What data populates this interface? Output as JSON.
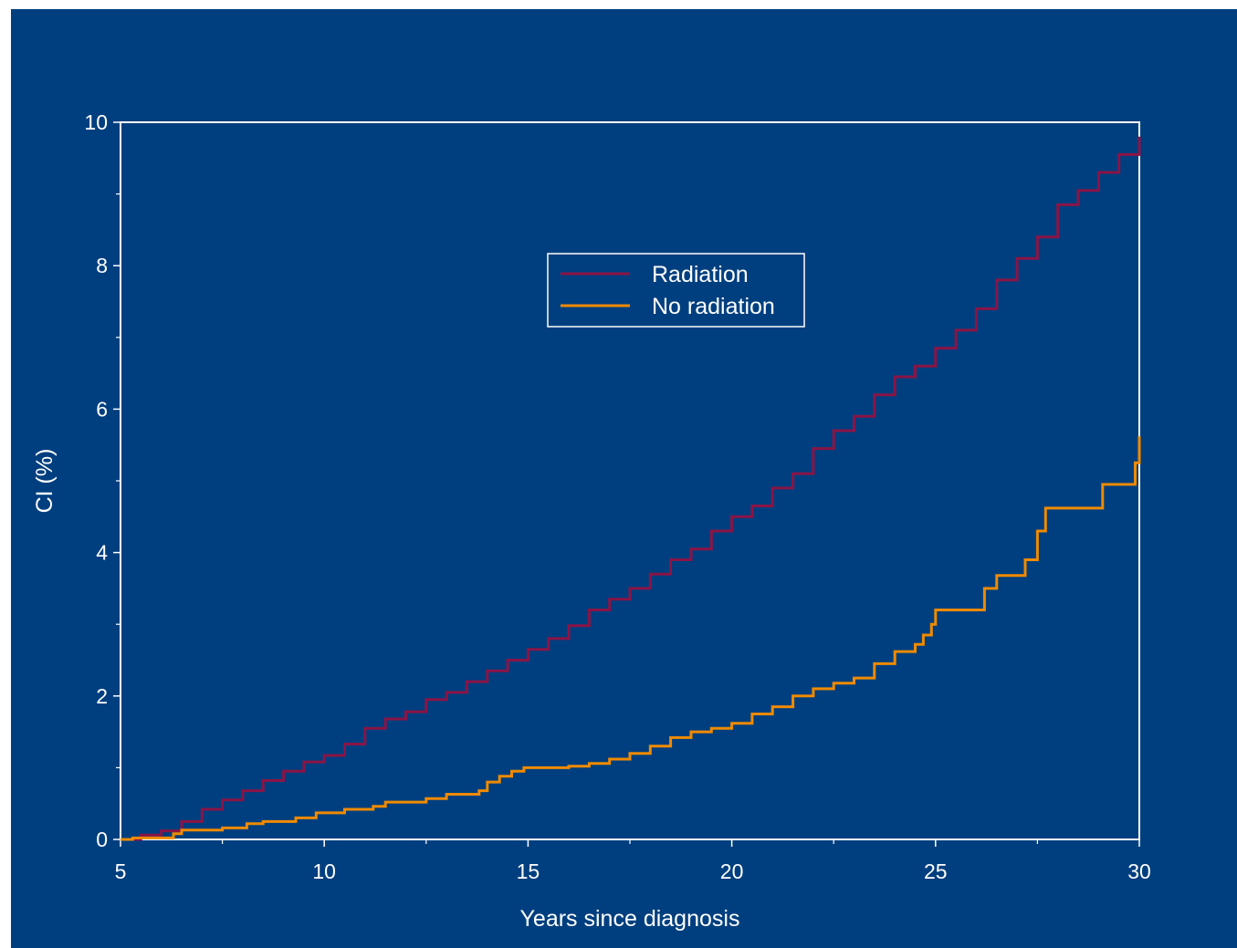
{
  "colors": {
    "background": "#003f7f",
    "axis": "#ffffff",
    "radiation": "#8b1446",
    "no_radiation": "#f08a00"
  },
  "chart_data": {
    "type": "line",
    "xlabel": "Years since diagnosis",
    "ylabel": "CI (%)",
    "xlim": [
      5,
      30
    ],
    "ylim": [
      0,
      10
    ],
    "x_ticks": [
      "5",
      "10",
      "15",
      "20",
      "25",
      "30"
    ],
    "y_ticks": [
      "0",
      "2",
      "4",
      "6",
      "8",
      "10"
    ],
    "legend_position": "upper-center",
    "step": true,
    "series": [
      {
        "name": "Radiation",
        "color": "#8b1446",
        "x": [
          5.0,
          5.5,
          6.0,
          6.5,
          7.0,
          7.5,
          8.0,
          8.5,
          9.0,
          9.5,
          10.0,
          10.5,
          11.0,
          11.5,
          12.0,
          12.5,
          13.0,
          13.5,
          14.0,
          14.5,
          15.0,
          15.5,
          16.0,
          16.5,
          17.0,
          17.5,
          18.0,
          18.5,
          19.0,
          19.5,
          20.0,
          20.5,
          21.0,
          21.5,
          22.0,
          22.5,
          23.0,
          23.5,
          24.0,
          24.5,
          25.0,
          25.5,
          26.0,
          26.5,
          27.0,
          27.5,
          28.0,
          28.5,
          29.0,
          29.5,
          30.0
        ],
        "y": [
          0.0,
          0.06,
          0.12,
          0.25,
          0.42,
          0.55,
          0.68,
          0.82,
          0.95,
          1.08,
          1.17,
          1.33,
          1.55,
          1.68,
          1.78,
          1.95,
          2.05,
          2.2,
          2.35,
          2.5,
          2.65,
          2.8,
          2.98,
          3.2,
          3.35,
          3.5,
          3.7,
          3.9,
          4.05,
          4.3,
          4.5,
          4.65,
          4.9,
          5.1,
          5.45,
          5.7,
          5.9,
          6.2,
          6.45,
          6.6,
          6.85,
          7.1,
          7.4,
          7.8,
          8.1,
          8.4,
          8.85,
          9.05,
          9.3,
          9.55,
          9.8
        ]
      },
      {
        "name": "No radiation",
        "color": "#f08a00",
        "x": [
          5.0,
          5.3,
          6.3,
          6.5,
          7.5,
          8.1,
          8.5,
          9.3,
          9.8,
          10.5,
          11.2,
          11.5,
          12.5,
          13.0,
          13.8,
          14.0,
          14.3,
          14.6,
          14.9,
          16.0,
          16.5,
          17.0,
          17.5,
          18.0,
          18.5,
          19.0,
          19.5,
          20.0,
          20.5,
          21.0,
          21.5,
          22.0,
          22.5,
          23.0,
          23.5,
          24.0,
          24.5,
          24.7,
          24.9,
          25.0,
          26.0,
          26.2,
          26.5,
          27.0,
          27.2,
          27.5,
          27.7,
          29.0,
          29.1,
          29.9,
          30.0
        ],
        "y": [
          0.0,
          0.02,
          0.08,
          0.13,
          0.16,
          0.22,
          0.25,
          0.3,
          0.37,
          0.42,
          0.46,
          0.52,
          0.57,
          0.63,
          0.68,
          0.8,
          0.88,
          0.95,
          1.0,
          1.02,
          1.06,
          1.12,
          1.2,
          1.3,
          1.42,
          1.5,
          1.55,
          1.62,
          1.75,
          1.85,
          2.0,
          2.1,
          2.18,
          2.25,
          2.45,
          2.62,
          2.72,
          2.85,
          3.0,
          3.2,
          3.2,
          3.5,
          3.68,
          3.68,
          3.9,
          4.3,
          4.62,
          4.62,
          4.95,
          5.25,
          5.62
        ]
      }
    ]
  }
}
